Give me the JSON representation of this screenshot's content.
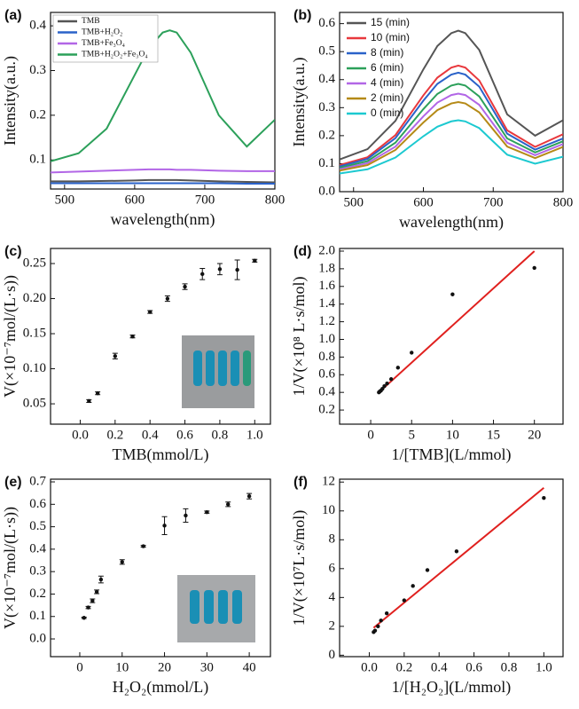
{
  "chart_data": [
    {
      "type": "line",
      "panel_label": "(a)",
      "xlabel": "wavelength(nm)",
      "ylabel": "Intensity(a.u.)",
      "x": [
        480,
        520,
        560,
        600,
        620,
        640,
        650,
        660,
        680,
        700,
        720,
        760,
        800
      ],
      "series": [
        {
          "name": "TMB",
          "color": "#555555",
          "values": [
            0.052,
            0.052,
            0.053,
            0.054,
            0.055,
            0.055,
            0.055,
            0.055,
            0.054,
            0.053,
            0.052,
            0.051,
            0.05
          ]
        },
        {
          "name": "TMB+H₂O₂",
          "color": "#2a62c9",
          "values": [
            0.048,
            0.048,
            0.048,
            0.048,
            0.048,
            0.048,
            0.048,
            0.048,
            0.048,
            0.048,
            0.048,
            0.047,
            0.047
          ]
        },
        {
          "name": "TMB+Fe₃O₄",
          "color": "#b266e6",
          "values": [
            0.072,
            0.074,
            0.076,
            0.078,
            0.079,
            0.079,
            0.079,
            0.078,
            0.078,
            0.077,
            0.076,
            0.075,
            0.075
          ]
        },
        {
          "name": "TMB+H₂O₂+Fe₃O₄",
          "color": "#2ca05a",
          "values": [
            0.097,
            0.115,
            0.17,
            0.29,
            0.35,
            0.385,
            0.39,
            0.385,
            0.34,
            0.27,
            0.2,
            0.13,
            0.19
          ]
        }
      ],
      "xlim": [
        480,
        800
      ],
      "xticks": [
        500,
        600,
        700,
        800
      ],
      "ylim": [
        0.035,
        0.43
      ],
      "yticks": [
        0.1,
        0.2,
        0.3,
        0.4
      ],
      "legend": "upper left"
    },
    {
      "type": "line",
      "panel_label": "(b)",
      "xlabel": "wavelength(nm)",
      "ylabel": "Intensity(a.u.)",
      "x": [
        480,
        520,
        560,
        600,
        620,
        640,
        650,
        660,
        680,
        700,
        720,
        760,
        800
      ],
      "series": [
        {
          "name": "15 (min)",
          "color": "#555555",
          "values": [
            0.115,
            0.152,
            0.253,
            0.437,
            0.52,
            0.566,
            0.575,
            0.566,
            0.506,
            0.391,
            0.276,
            0.2,
            0.255
          ]
        },
        {
          "name": "10 (min)",
          "color": "#e8383d",
          "values": [
            0.095,
            0.123,
            0.202,
            0.344,
            0.407,
            0.443,
            0.45,
            0.443,
            0.397,
            0.308,
            0.219,
            0.16,
            0.205
          ]
        },
        {
          "name": "8 (min)",
          "color": "#2a62c9",
          "values": [
            0.09,
            0.117,
            0.191,
            0.325,
            0.385,
            0.418,
            0.425,
            0.418,
            0.375,
            0.291,
            0.207,
            0.15,
            0.19
          ]
        },
        {
          "name": "6 (min)",
          "color": "#2ca05a",
          "values": [
            0.085,
            0.109,
            0.175,
            0.295,
            0.349,
            0.379,
            0.385,
            0.379,
            0.34,
            0.265,
            0.19,
            0.14,
            0.18
          ]
        },
        {
          "name": "4 (min)",
          "color": "#b266e6",
          "values": [
            0.08,
            0.102,
            0.161,
            0.269,
            0.318,
            0.345,
            0.35,
            0.345,
            0.31,
            0.242,
            0.175,
            0.13,
            0.17
          ]
        },
        {
          "name": "2 (min)",
          "color": "#b58a17",
          "values": [
            0.075,
            0.095,
            0.149,
            0.247,
            0.291,
            0.315,
            0.32,
            0.315,
            0.283,
            0.222,
            0.161,
            0.12,
            0.16
          ]
        },
        {
          "name": "0 (min)",
          "color": "#1cc9d0",
          "values": [
            0.065,
            0.08,
            0.122,
            0.198,
            0.232,
            0.251,
            0.255,
            0.251,
            0.227,
            0.179,
            0.132,
            0.1,
            0.125
          ]
        }
      ],
      "xlim": [
        480,
        800
      ],
      "xticks": [
        500,
        600,
        700,
        800
      ],
      "ylim": [
        0,
        0.64
      ],
      "yticks": [
        {
          "value": 0,
          "label": "0.0"
        },
        0.1,
        0.2,
        0.3,
        0.4,
        0.5,
        0.6
      ],
      "legend": "upper left"
    },
    {
      "type": "scatter",
      "panel_label": "(c)",
      "xlabel": "TMB(mmol/L)",
      "ylabel": "V(×10⁻⁷mol/(L·s))",
      "x": [
        0.05,
        0.1,
        0.2,
        0.3,
        0.4,
        0.5,
        0.6,
        0.7,
        0.8,
        0.9,
        1.0
      ],
      "values": [
        0.054,
        0.065,
        0.118,
        0.146,
        0.181,
        0.2,
        0.217,
        0.235,
        0.242,
        0.241,
        0.254
      ],
      "errors": [
        0.002,
        0.002,
        0.004,
        0.002,
        0.002,
        0.004,
        0.004,
        0.008,
        0.008,
        0.014,
        0.002
      ],
      "color": "#111111",
      "xlim": [
        -0.17,
        1.09
      ],
      "xticks": [
        {
          "value": 0,
          "label": "0.0"
        },
        0.2,
        0.4,
        0.6,
        0.8,
        {
          "value": 1,
          "label": "1.0"
        }
      ],
      "ylim": [
        0.021,
        0.2715
      ],
      "yticks": [
        0.05,
        {
          "value": 0.1,
          "label": "0.10"
        },
        0.15,
        {
          "value": 0.2,
          "label": "0.20"
        },
        0.25
      ]
    },
    {
      "type": "scatter",
      "panel_label": "(d)",
      "xlabel": "1/[TMB](L/mmol)",
      "ylabel": "1/V(×10⁸ L·s/mol)",
      "x": [
        1,
        1.11,
        1.25,
        1.43,
        1.67,
        2,
        2.5,
        3.33,
        5,
        10,
        20
      ],
      "values": [
        0.4,
        0.41,
        0.42,
        0.44,
        0.47,
        0.5,
        0.55,
        0.68,
        0.85,
        1.51,
        1.81
      ],
      "color": "#111111",
      "fit_x": [
        1,
        20
      ],
      "fit_y": [
        0.4,
        2.0
      ],
      "fit_color": "#e0201e",
      "xlim": [
        -3.8,
        23.5
      ],
      "xticks": [
        0,
        5,
        10,
        15,
        20
      ],
      "ylim": [
        0.04,
        2.03
      ],
      "yticks": [
        0.2,
        0.4,
        0.6,
        0.8,
        {
          "value": 1,
          "label": "1.0"
        },
        1.2,
        1.4,
        1.6,
        1.8,
        {
          "value": 2,
          "label": "2.0"
        }
      ]
    },
    {
      "type": "scatter",
      "panel_label": "(e)",
      "xlabel": "H₂O₂(mmol/L)",
      "ylabel": "V(×10⁻⁷mol/(L·s))",
      "x": [
        1,
        2,
        3,
        4,
        5,
        10,
        15,
        20,
        25,
        30,
        35,
        40
      ],
      "values": [
        0.094,
        0.14,
        0.17,
        0.21,
        0.265,
        0.343,
        0.413,
        0.505,
        0.55,
        0.565,
        0.6,
        0.636
      ],
      "errors": [
        0.003,
        0.005,
        0.008,
        0.008,
        0.015,
        0.01,
        0.004,
        0.04,
        0.03,
        0.005,
        0.01,
        0.012
      ],
      "color": "#111111",
      "xlim": [
        -6.9,
        45
      ],
      "xticks": [
        0,
        10,
        20,
        30,
        40
      ],
      "ylim": [
        -0.079,
        0.712
      ],
      "yticks": [
        {
          "value": 0,
          "label": "0.0"
        },
        0.1,
        0.2,
        0.3,
        0.4,
        0.5,
        0.6,
        0.7
      ]
    },
    {
      "type": "scatter",
      "panel_label": "(f)",
      "xlabel": "1/[H₂O₂](L/mmol)",
      "ylabel": "1/V(×10⁷L·s/mol)",
      "x": [
        0.025,
        0.033,
        0.05,
        0.067,
        0.1,
        0.2,
        0.25,
        0.333,
        0.5,
        1.0
      ],
      "values": [
        1.6,
        1.7,
        2.0,
        2.4,
        2.9,
        3.8,
        4.8,
        5.9,
        7.2,
        10.9
      ],
      "color": "#111111",
      "fit_x": [
        0.025,
        1.0
      ],
      "fit_y": [
        1.9,
        11.6
      ],
      "fit_color": "#e0201e",
      "xlim": [
        -0.17,
        1.11
      ],
      "xticks": [
        {
          "value": 0,
          "label": "0.0"
        },
        0.2,
        0.4,
        0.6,
        0.8,
        {
          "value": 1,
          "label": "1.0"
        }
      ],
      "ylim": [
        -0.1,
        12.2
      ],
      "yticks": [
        0,
        2,
        4,
        6,
        8,
        10,
        12
      ]
    }
  ]
}
